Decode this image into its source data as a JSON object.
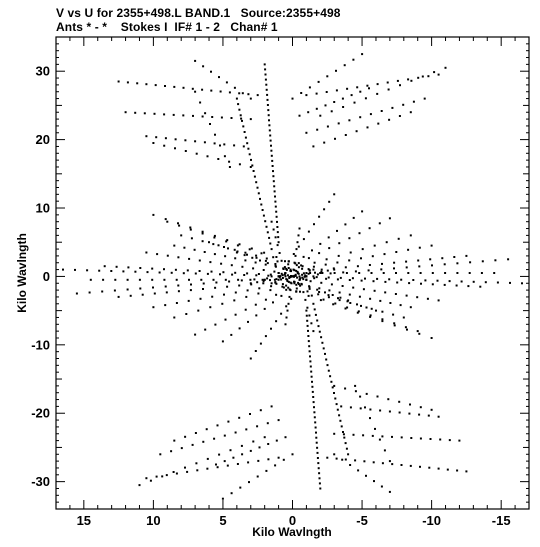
{
  "header": {
    "line1": "V vs U for 2355+498.L BAND.1   Source:2355+498",
    "line2": "Ants * - *    Stokes I  IF# 1 - 2   Chan# 1"
  },
  "chart_data": {
    "type": "scatter",
    "title": "V vs U for 2355+498.L BAND.1   Source:2355+498",
    "subtitle": "Ants * - *    Stokes I  IF# 1 - 2   Chan# 1",
    "xlabel": "Kilo Wavlngth",
    "ylabel": "Kilo Wavlngth",
    "xlim": [
      17,
      -17
    ],
    "ylim": [
      -34,
      35
    ],
    "x_ticks": [
      15,
      10,
      5,
      0,
      -5,
      -10,
      -15
    ],
    "y_ticks": [
      30,
      20,
      10,
      0,
      -10,
      -20,
      -30
    ],
    "x_tick_labels": [
      "15",
      "10",
      "5",
      "0",
      "-5",
      "-10",
      "-15"
    ],
    "y_tick_labels": [
      "30",
      "20",
      "10",
      "0",
      "-10",
      "-20",
      "-30"
    ],
    "grid": false,
    "marker_color": "#000000",
    "series": [
      {
        "tracks": [
          {
            "u": [
              -1.0,
              4.0
            ],
            "v": [
              0.0,
              3.5
            ],
            "n": 10
          },
          {
            "u": [
              -1.5,
              6.0
            ],
            "v": [
              0.0,
              5.0
            ],
            "n": 12
          },
          {
            "u": [
              -2.0,
              8.0
            ],
            "v": [
              0.5,
              6.0
            ],
            "n": 14
          },
          {
            "u": [
              -2.0,
              9.0
            ],
            "v": [
              0.5,
              8.0
            ],
            "n": 14
          },
          {
            "u": [
              -1.5,
              10.0
            ],
            "v": [
              1.0,
              9.0
            ],
            "n": 14
          },
          {
            "u": [
              -1.0,
              8.5
            ],
            "v": [
              0.5,
              4.5
            ],
            "n": 14
          },
          {
            "u": [
              -1.0,
              10.5
            ],
            "v": [
              0.0,
              3.5
            ],
            "n": 16
          },
          {
            "u": [
              -1.0,
              13.5
            ],
            "v": [
              0.0,
              1.5
            ],
            "n": 18
          },
          {
            "u": [
              -0.5,
              14.5
            ],
            "v": [
              -0.5,
              -0.5
            ],
            "n": 18
          },
          {
            "u": [
              0.0,
              16.5
            ],
            "v": [
              0.0,
              1.0
            ],
            "n": 20
          },
          {
            "u": [
              0.0,
              15.5
            ],
            "v": [
              0.0,
              -2.5
            ],
            "n": 18
          },
          {
            "u": [
              -0.5,
              12.5
            ],
            "v": [
              -0.5,
              -3.0
            ],
            "n": 16
          },
          {
            "u": [
              -1.0,
              10.0
            ],
            "v": [
              -0.5,
              -4.5
            ],
            "n": 14
          },
          {
            "u": [
              -1.0,
              8.5
            ],
            "v": [
              -0.5,
              -6.0
            ],
            "n": 12
          },
          {
            "u": [
              -1.0,
              7.0
            ],
            "v": [
              -0.5,
              -8.5
            ],
            "n": 12
          },
          {
            "u": [
              -1.0,
              5.0
            ],
            "v": [
              0.0,
              -9.5
            ],
            "n": 11
          },
          {
            "u": [
              -1.0,
              3.0
            ],
            "v": [
              0.0,
              -12.0
            ],
            "n": 12
          },
          {
            "u": [
              1.0,
              -4.0
            ],
            "v": [
              0.0,
              -3.5
            ],
            "n": 10
          },
          {
            "u": [
              1.5,
              -6.0
            ],
            "v": [
              0.0,
              -5.0
            ],
            "n": 12
          },
          {
            "u": [
              2.0,
              -8.0
            ],
            "v": [
              -0.5,
              -6.0
            ],
            "n": 14
          },
          {
            "u": [
              2.0,
              -9.0
            ],
            "v": [
              -0.5,
              -8.0
            ],
            "n": 14
          },
          {
            "u": [
              1.5,
              -10.0
            ],
            "v": [
              -1.0,
              -9.0
            ],
            "n": 14
          },
          {
            "u": [
              1.0,
              -8.5
            ],
            "v": [
              -0.5,
              -4.5
            ],
            "n": 14
          },
          {
            "u": [
              1.0,
              -10.5
            ],
            "v": [
              0.0,
              -3.5
            ],
            "n": 16
          },
          {
            "u": [
              1.0,
              -13.5
            ],
            "v": [
              0.0,
              -1.5
            ],
            "n": 18
          },
          {
            "u": [
              0.5,
              -14.5
            ],
            "v": [
              0.5,
              0.5
            ],
            "n": 18
          },
          {
            "u": [
              0.0,
              -16.5
            ],
            "v": [
              0.0,
              -1.0
            ],
            "n": 20
          },
          {
            "u": [
              0.0,
              -15.5
            ],
            "v": [
              0.0,
              2.5
            ],
            "n": 18
          },
          {
            "u": [
              0.5,
              -12.5
            ],
            "v": [
              0.5,
              3.0
            ],
            "n": 16
          },
          {
            "u": [
              1.0,
              -10.0
            ],
            "v": [
              0.5,
              4.5
            ],
            "n": 14
          },
          {
            "u": [
              1.0,
              -8.5
            ],
            "v": [
              0.5,
              6.0
            ],
            "n": 12
          },
          {
            "u": [
              1.0,
              -7.0
            ],
            "v": [
              0.5,
              8.5
            ],
            "n": 12
          },
          {
            "u": [
              1.0,
              -5.0
            ],
            "v": [
              0.0,
              9.5
            ],
            "n": 11
          },
          {
            "u": [
              1.0,
              -3.0
            ],
            "v": [
              0.0,
              12.0
            ],
            "n": 12
          },
          {
            "u": [
              0.0,
              -0.5
            ],
            "v": [
              0.0,
              7.0
            ],
            "n": 8
          },
          {
            "u": [
              0.5,
              1.5
            ],
            "v": [
              0.0,
              8.0
            ],
            "n": 8
          },
          {
            "u": [
              0.0,
              0.5
            ],
            "v": [
              0.0,
              -7.0
            ],
            "n": 8
          },
          {
            "u": [
              -0.5,
              -1.5
            ],
            "v": [
              0.0,
              -8.0
            ],
            "n": 8
          },
          {
            "u": [
              -1.0,
              1.0
            ],
            "v": [
              -0.5,
              0.5
            ],
            "n": 10
          },
          {
            "u": [
              -3.0,
              3.0
            ],
            "v": [
              1.0,
              -1.0
            ],
            "n": 14
          },
          {
            "u": [
              1.0,
              2.0
            ],
            "v": [
              5.0,
              31.0
            ],
            "n": 36
          },
          {
            "u": [
              1.5,
              4.0
            ],
            "v": [
              4.0,
              26.0
            ],
            "n": 28
          },
          {
            "u": [
              -1.0,
              -2.0
            ],
            "v": [
              -5.0,
              -31.0
            ],
            "n": 36
          },
          {
            "u": [
              -1.5,
              -4.0
            ],
            "v": [
              -4.0,
              -26.0
            ],
            "n": 28
          },
          {
            "u": [
              2.5,
              12.5
            ],
            "v": [
              26.5,
              28.5
            ],
            "n": 16
          },
          {
            "u": [
              3.0,
              12.0
            ],
            "v": [
              23.0,
              24.0
            ],
            "n": 14
          },
          {
            "u": [
              3.5,
              10.5
            ],
            "v": [
              19.0,
              20.5
            ],
            "n": 11
          },
          {
            "u": [
              3.0,
              10.0
            ],
            "v": [
              16.0,
              19.5
            ],
            "n": 10
          },
          {
            "u": [
              3.0,
              7.0
            ],
            "v": [
              26.0,
              31.5
            ],
            "n": 8
          },
          {
            "u": [
              4.5,
              7.0
            ],
            "v": [
              16.0,
              27.0
            ],
            "n": 8
          },
          {
            "u": [
              0.0,
              -5.0
            ],
            "v": [
              26.0,
              32.5
            ],
            "n": 9
          },
          {
            "u": [
              -0.5,
              -5.5
            ],
            "v": [
              23.5,
              27.5
            ],
            "n": 9
          },
          {
            "u": [
              -1.0,
              -10.5
            ],
            "v": [
              26.5,
              29.5
            ],
            "n": 14
          },
          {
            "u": [
              -2.0,
              -11.0
            ],
            "v": [
              23.5,
              30.5
            ],
            "n": 12
          },
          {
            "u": [
              -1.0,
              -9.5
            ],
            "v": [
              21.0,
              26.0
            ],
            "n": 12
          },
          {
            "u": [
              -1.5,
              -8.5
            ],
            "v": [
              19.0,
              24.0
            ],
            "n": 10
          },
          {
            "u": [
              -2.5,
              -12.5
            ],
            "v": [
              -26.5,
              -28.5
            ],
            "n": 16
          },
          {
            "u": [
              -3.0,
              -12.0
            ],
            "v": [
              -23.0,
              -24.0
            ],
            "n": 14
          },
          {
            "u": [
              -3.5,
              -10.5
            ],
            "v": [
              -19.0,
              -20.5
            ],
            "n": 11
          },
          {
            "u": [
              -3.0,
              -10.0
            ],
            "v": [
              -16.0,
              -19.5
            ],
            "n": 10
          },
          {
            "u": [
              -3.0,
              -7.0
            ],
            "v": [
              -26.0,
              -31.5
            ],
            "n": 8
          },
          {
            "u": [
              -4.5,
              -7.0
            ],
            "v": [
              -16.0,
              -27.0
            ],
            "n": 8
          },
          {
            "u": [
              0.0,
              5.0
            ],
            "v": [
              -26.0,
              -32.5
            ],
            "n": 9
          },
          {
            "u": [
              0.5,
              5.5
            ],
            "v": [
              -23.5,
              -27.5
            ],
            "n": 9
          },
          {
            "u": [
              1.0,
              10.5
            ],
            "v": [
              -26.5,
              -29.5
            ],
            "n": 14
          },
          {
            "u": [
              2.0,
              11.0
            ],
            "v": [
              -23.5,
              -30.5
            ],
            "n": 12
          },
          {
            "u": [
              1.0,
              9.5
            ],
            "v": [
              -21.0,
              -26.0
            ],
            "n": 12
          },
          {
            "u": [
              1.5,
              8.5
            ],
            "v": [
              -19.0,
              -24.0
            ],
            "n": 10
          }
        ]
      }
    ]
  }
}
